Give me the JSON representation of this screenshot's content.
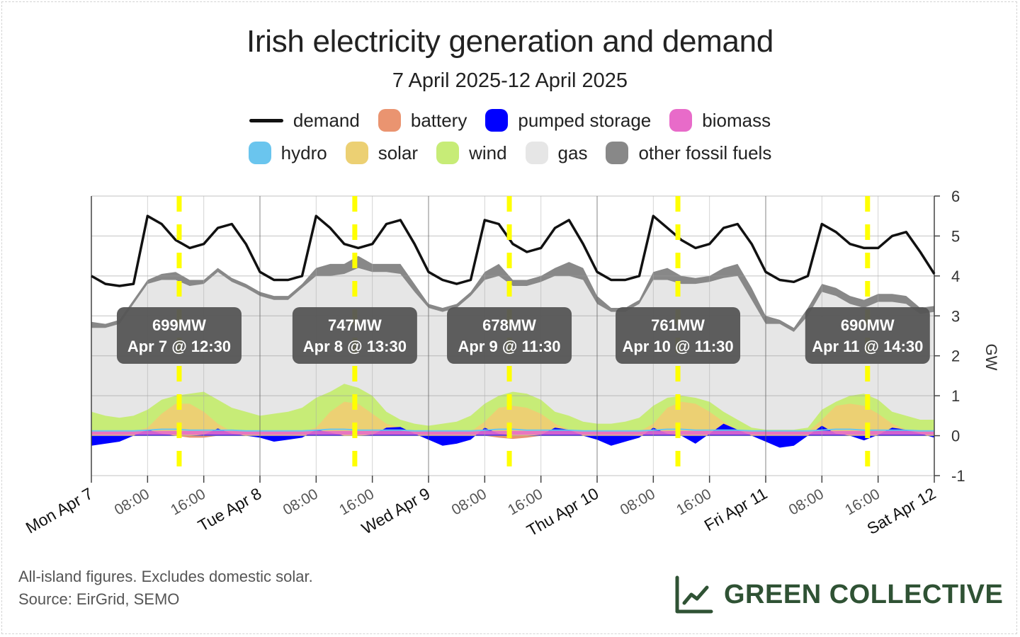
{
  "title": "Irish electricity generation and demand",
  "subtitle": "7 April 2025-12 April 2025",
  "legend": [
    {
      "label": "demand",
      "color": "#111111",
      "kind": "line"
    },
    {
      "label": "battery",
      "color": "#ea9470",
      "kind": "swatch"
    },
    {
      "label": "pumped storage",
      "color": "#0000ff",
      "kind": "swatch"
    },
    {
      "label": "biomass",
      "color": "#e86bc9",
      "kind": "swatch"
    },
    {
      "label": "hydro",
      "color": "#6ac5ee",
      "kind": "swatch"
    },
    {
      "label": "solar",
      "color": "#ecd073",
      "kind": "swatch"
    },
    {
      "label": "wind",
      "color": "#c7ec77",
      "kind": "swatch"
    },
    {
      "label": "gas",
      "color": "#e6e6e6",
      "kind": "swatch"
    },
    {
      "label": "other fossil fuels",
      "color": "#888888",
      "kind": "swatch"
    }
  ],
  "footnote": {
    "line1": "All-island figures. Excludes domestic solar.",
    "line2": "Source: EirGrid, SEMO"
  },
  "brand": {
    "name": "GREEN COLLECTIVE",
    "color": "#2f5234",
    "icon": "line-chart-icon"
  },
  "chart_data": {
    "type": "area",
    "ylabel": "GW",
    "ylim": [
      -1,
      6
    ],
    "yticks": [
      -1,
      0,
      1,
      2,
      3,
      4,
      5,
      6
    ],
    "x_unit": "hours since Mon Apr 7 00:00",
    "xlim_hours": [
      0,
      120
    ],
    "day_labels": [
      "Mon Apr 7",
      "Tue Apr 8",
      "Wed Apr 9",
      "Thu Apr 10",
      "Fri Apr 11",
      "Sat Apr 12"
    ],
    "hour_labels": [
      "08:00",
      "16:00"
    ],
    "grid": true,
    "x": [
      0,
      2,
      4,
      6,
      8,
      10,
      12,
      14,
      16,
      18,
      20,
      22,
      24,
      26,
      28,
      30,
      32,
      34,
      36,
      38,
      40,
      42,
      44,
      46,
      48,
      50,
      52,
      54,
      56,
      58,
      60,
      62,
      64,
      66,
      68,
      70,
      72,
      74,
      76,
      78,
      80,
      82,
      84,
      86,
      88,
      90,
      92,
      94,
      96,
      98,
      100,
      102,
      104,
      106,
      108,
      110,
      112,
      114,
      116,
      118,
      120
    ],
    "demand": [
      4.0,
      3.8,
      3.75,
      3.8,
      5.5,
      5.3,
      4.9,
      4.7,
      4.8,
      5.2,
      5.3,
      4.8,
      4.1,
      3.9,
      3.9,
      4.0,
      5.5,
      5.2,
      4.8,
      4.7,
      4.8,
      5.3,
      5.4,
      4.8,
      4.1,
      3.9,
      3.8,
      3.9,
      5.4,
      5.3,
      4.8,
      4.6,
      4.7,
      5.2,
      5.4,
      4.8,
      4.1,
      3.9,
      3.9,
      4.0,
      5.5,
      5.2,
      4.9,
      4.7,
      4.8,
      5.2,
      5.3,
      4.8,
      4.1,
      3.9,
      3.85,
      4.0,
      5.3,
      5.1,
      4.8,
      4.7,
      4.7,
      5.0,
      5.1,
      4.6,
      4.05
    ],
    "series": [
      {
        "name": "other fossil fuels",
        "top": [
          2.85,
          2.8,
          2.9,
          3.4,
          3.9,
          4.05,
          4.1,
          3.9,
          3.9,
          4.2,
          3.95,
          3.8,
          3.6,
          3.5,
          3.5,
          3.8,
          4.2,
          4.3,
          4.3,
          4.5,
          4.3,
          4.3,
          4.3,
          3.8,
          3.3,
          3.2,
          3.3,
          3.6,
          4.1,
          4.3,
          3.9,
          3.9,
          4.0,
          4.2,
          4.35,
          4.2,
          3.5,
          3.2,
          3.2,
          3.4,
          4.1,
          4.2,
          4.0,
          3.95,
          4.0,
          4.2,
          4.3,
          3.7,
          3.0,
          2.9,
          2.7,
          3.2,
          3.8,
          3.7,
          3.5,
          3.4,
          3.55,
          3.55,
          3.5,
          3.2,
          3.25
        ]
      },
      {
        "name": "gas",
        "top": [
          2.7,
          2.7,
          2.8,
          3.3,
          3.8,
          3.9,
          3.9,
          3.75,
          3.8,
          4.1,
          3.85,
          3.7,
          3.5,
          3.4,
          3.4,
          3.7,
          4.0,
          4.0,
          4.05,
          4.2,
          4.1,
          4.1,
          4.05,
          3.6,
          3.2,
          3.1,
          3.2,
          3.5,
          3.9,
          4.0,
          3.75,
          3.75,
          3.85,
          4.0,
          4.0,
          3.9,
          3.3,
          3.1,
          3.1,
          3.3,
          3.9,
          3.9,
          3.8,
          3.8,
          3.85,
          3.95,
          4.0,
          3.4,
          2.8,
          2.8,
          2.6,
          3.0,
          3.6,
          3.5,
          3.3,
          3.2,
          3.35,
          3.35,
          3.3,
          3.05,
          3.1
        ]
      },
      {
        "name": "wind",
        "top": [
          0.6,
          0.5,
          0.45,
          0.5,
          0.65,
          0.9,
          1.0,
          1.05,
          1.1,
          0.9,
          0.7,
          0.6,
          0.5,
          0.55,
          0.6,
          0.7,
          0.95,
          1.1,
          1.3,
          1.2,
          1.0,
          0.6,
          0.4,
          0.3,
          0.25,
          0.3,
          0.35,
          0.5,
          0.8,
          1.0,
          1.1,
          1.05,
          0.9,
          0.6,
          0.5,
          0.35,
          0.3,
          0.3,
          0.35,
          0.45,
          0.75,
          0.95,
          1.0,
          0.95,
          0.85,
          0.6,
          0.4,
          0.2,
          0.15,
          0.15,
          0.15,
          0.2,
          0.65,
          0.85,
          1.0,
          1.05,
          0.9,
          0.6,
          0.5,
          0.4,
          0.4
        ]
      },
      {
        "name": "solar",
        "top": [
          0.1,
          0.1,
          0.1,
          0.1,
          0.2,
          0.55,
          0.8,
          0.8,
          0.6,
          0.3,
          0.1,
          0.1,
          0.1,
          0.1,
          0.1,
          0.1,
          0.2,
          0.6,
          0.85,
          0.8,
          0.55,
          0.3,
          0.2,
          0.1,
          0.1,
          0.1,
          0.1,
          0.1,
          0.35,
          0.7,
          0.75,
          0.7,
          0.55,
          0.3,
          0.15,
          0.1,
          0.1,
          0.1,
          0.1,
          0.1,
          0.3,
          0.7,
          0.85,
          0.8,
          0.6,
          0.35,
          0.15,
          0.1,
          0.1,
          0.1,
          0.1,
          0.1,
          0.4,
          0.75,
          0.8,
          0.75,
          0.55,
          0.3,
          0.15,
          0.1,
          0.1
        ]
      },
      {
        "name": "hydro",
        "top": [
          0.08,
          0.08,
          0.08,
          0.08,
          0.1,
          0.12,
          0.12,
          0.1,
          0.1,
          0.1,
          0.1,
          0.08,
          0.08,
          0.08,
          0.08,
          0.08,
          0.1,
          0.12,
          0.12,
          0.1,
          0.1,
          0.1,
          0.1,
          0.08,
          0.08,
          0.08,
          0.08,
          0.08,
          0.1,
          0.12,
          0.12,
          0.1,
          0.1,
          0.1,
          0.1,
          0.08,
          0.08,
          0.08,
          0.08,
          0.08,
          0.1,
          0.12,
          0.12,
          0.1,
          0.1,
          0.1,
          0.1,
          0.08,
          0.08,
          0.08,
          0.08,
          0.08,
          0.1,
          0.12,
          0.12,
          0.1,
          0.1,
          0.1,
          0.1,
          0.08,
          0.08
        ]
      },
      {
        "name": "biomass",
        "band": [
          0.02,
          0.12
        ]
      },
      {
        "name": "pumped storage",
        "net": [
          -0.25,
          -0.2,
          -0.15,
          0.0,
          0.15,
          0.05,
          0.0,
          0.0,
          0.02,
          0.18,
          0.05,
          0.0,
          -0.05,
          -0.15,
          -0.1,
          -0.05,
          0.15,
          0.08,
          0.0,
          0.0,
          0.02,
          0.2,
          0.22,
          0.05,
          -0.1,
          -0.25,
          -0.2,
          -0.1,
          0.2,
          0.05,
          0.0,
          0.0,
          0.02,
          0.2,
          0.15,
          0.0,
          -0.1,
          -0.25,
          -0.15,
          -0.05,
          0.2,
          0.05,
          0.0,
          -0.2,
          0.05,
          0.3,
          0.15,
          0.0,
          -0.15,
          -0.3,
          -0.25,
          0.0,
          0.25,
          0.05,
          0.0,
          -0.12,
          0.02,
          0.2,
          0.15,
          0.05,
          -0.05
        ]
      },
      {
        "name": "battery",
        "net": [
          0.0,
          0.0,
          -0.05,
          0.0,
          0.0,
          0.0,
          0.0,
          -0.05,
          -0.05,
          0.0,
          0.0,
          0.0,
          0.0,
          0.0,
          -0.05,
          0.0,
          0.0,
          0.0,
          0.0,
          0.0,
          0.0,
          0.0,
          0.0,
          0.0,
          0.0,
          -0.1,
          -0.1,
          0.0,
          0.0,
          -0.05,
          -0.08,
          -0.05,
          0.0,
          0.0,
          0.0,
          0.0,
          0.0,
          -0.05,
          -0.1,
          0.0,
          0.0,
          0.0,
          0.0,
          0.0,
          0.0,
          0.0,
          0.0,
          0.0,
          0.0,
          0.0,
          0.0,
          0.0,
          0.0,
          0.0,
          0.0,
          0.0,
          0.0,
          0.0,
          0.0,
          0.0,
          0.0
        ]
      }
    ],
    "solar_peaks": [
      {
        "hour": 12.5,
        "label_value": "699MW",
        "label_time": "Apr 7 @ 12:30"
      },
      {
        "hour": 37.5,
        "label_value": "747MW",
        "label_time": "Apr 8 @ 13:30"
      },
      {
        "hour": 59.5,
        "label_value": "678MW",
        "label_time": "Apr 9 @ 11:30"
      },
      {
        "hour": 83.5,
        "label_value": "761MW",
        "label_time": "Apr 10 @ 11:30"
      },
      {
        "hour": 110.5,
        "label_value": "690MW",
        "label_time": "Apr 11 @ 14:30"
      }
    ],
    "peak_marker_color": "#ffff00"
  }
}
